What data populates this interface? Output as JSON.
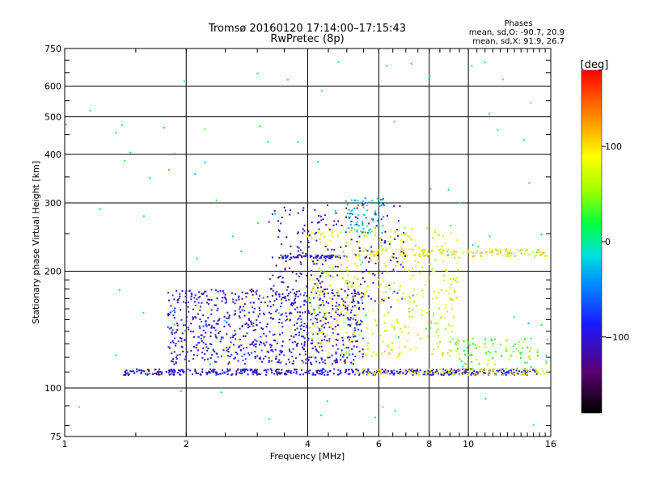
{
  "chart_data": {
    "type": "scatter",
    "title": "Tromsø 20160120 17:14:00–17:15:43",
    "subtitle": "RwPretec (8p)",
    "xlabel": "Frequency [MHz]",
    "ylabel": "Stationary phase Virtual Height [km]",
    "x_scale": "log",
    "y_scale": "log",
    "xlim": [
      1,
      16
    ],
    "ylim": [
      75,
      750
    ],
    "x_ticks": [
      1,
      2,
      4,
      6,
      8,
      10,
      16
    ],
    "y_ticks": [
      75,
      100,
      200,
      300,
      400,
      500,
      600,
      750
    ],
    "grid": true,
    "phase_box": {
      "title": "Phases",
      "line1": "mean, sd,O: -90.7, 20.9",
      "line2": "mean, sd,X:  91.9, 26.7"
    },
    "colorbar": {
      "label": "[deg]",
      "range": [
        -180,
        180
      ],
      "ticks": [
        {
          "value": 100,
          "label": "100"
        },
        {
          "value": 0,
          "label": "0"
        },
        {
          "value": -100,
          "label": "−100"
        }
      ]
    },
    "series": [
      {
        "approximate_point_cloud": [
          {
            "f_range": [
              1.4,
              14.8
            ],
            "h_range": [
              108,
              112
            ],
            "phase": -100,
            "count": 520
          },
          {
            "f_range": [
              5.2,
              15.8
            ],
            "h_range": [
              108,
              112
            ],
            "phase": 90,
            "count": 120
          },
          {
            "f_range": [
              3.4,
              5.0
            ],
            "h_range": [
              216,
              220
            ],
            "phase": -100,
            "count": 70
          },
          {
            "f_range": [
              5.3,
              15.7
            ],
            "h_range": [
              218,
              228
            ],
            "phase": 90,
            "count": 140
          },
          {
            "f_range": [
              1.8,
              5.5
            ],
            "h_range": [
              115,
              180
            ],
            "phase": -100,
            "count": 780
          },
          {
            "f_range": [
              4.0,
              9.5
            ],
            "h_range": [
              120,
              260
            ],
            "phase": 80,
            "count": 430
          },
          {
            "f_range": [
              3.2,
              7.0
            ],
            "h_range": [
              160,
              300
            ],
            "phase": -110,
            "count": 250
          },
          {
            "f_range": [
              5.0,
              6.2
            ],
            "h_range": [
              250,
              310
            ],
            "phase": -30,
            "count": 70
          },
          {
            "f_range": [
              9.0,
              15.8
            ],
            "h_range": [
              112,
              135
            ],
            "phase": 40,
            "count": 100
          },
          {
            "f_range": [
              1.0,
              16.0
            ],
            "h_range": [
              80,
              700
            ],
            "phase": 0,
            "count": 90
          }
        ]
      }
    ]
  }
}
